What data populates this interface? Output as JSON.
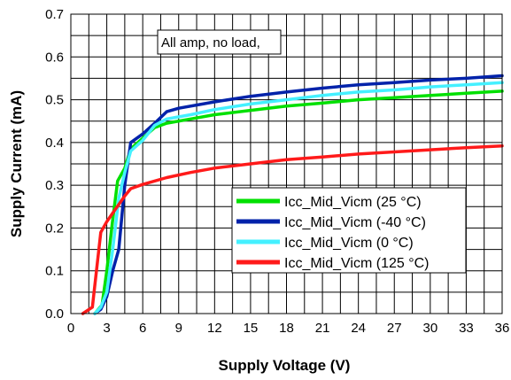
{
  "chart_data": {
    "type": "line",
    "xlabel": "Supply Voltage (V)",
    "ylabel": "Supply Current (mA)",
    "xlim": [
      0,
      36
    ],
    "ylim": [
      0.0,
      0.7
    ],
    "xticks": [
      0,
      3,
      6,
      9,
      12,
      15,
      18,
      21,
      24,
      27,
      30,
      33,
      36
    ],
    "xtick_labels": [
      "0",
      "3",
      "6",
      "9",
      "12",
      "15",
      "18",
      "21",
      "24",
      "27",
      "30",
      "33",
      "36"
    ],
    "yticks": [
      0.0,
      0.1,
      0.2,
      0.3,
      0.4,
      0.5,
      0.6,
      0.7
    ],
    "ytick_labels": [
      "0.0",
      "0.1",
      "0.2",
      "0.3",
      "0.4",
      "0.5",
      "0.6",
      "0.7"
    ],
    "grid": true,
    "legend_position": "lower-right",
    "annotation": "All amp, no load,",
    "series": [
      {
        "name": "Icc_Mid_Vicm (25 °C)",
        "color": "#00e000",
        "points": [
          [
            2.0,
            0.0
          ],
          [
            2.6,
            0.02
          ],
          [
            3.0,
            0.1
          ],
          [
            3.5,
            0.22
          ],
          [
            3.9,
            0.31
          ],
          [
            4.5,
            0.34
          ],
          [
            5.0,
            0.385
          ],
          [
            6.0,
            0.41
          ],
          [
            7.0,
            0.435
          ],
          [
            8.0,
            0.445
          ],
          [
            10,
            0.455
          ],
          [
            12,
            0.465
          ],
          [
            15,
            0.475
          ],
          [
            18,
            0.485
          ],
          [
            21,
            0.492
          ],
          [
            24,
            0.5
          ],
          [
            27,
            0.505
          ],
          [
            30,
            0.51
          ],
          [
            33,
            0.515
          ],
          [
            36,
            0.52
          ]
        ]
      },
      {
        "name": "Icc_Mid_Vicm (-40 °C)",
        "color": "#0022aa",
        "points": [
          [
            2.0,
            0.0
          ],
          [
            2.5,
            0.01
          ],
          [
            3.0,
            0.04
          ],
          [
            3.5,
            0.1
          ],
          [
            4.0,
            0.15
          ],
          [
            4.5,
            0.3
          ],
          [
            5.0,
            0.4
          ],
          [
            6.0,
            0.42
          ],
          [
            7.0,
            0.445
          ],
          [
            8.0,
            0.472
          ],
          [
            9.0,
            0.48
          ],
          [
            12,
            0.495
          ],
          [
            15,
            0.508
          ],
          [
            18,
            0.518
          ],
          [
            21,
            0.527
          ],
          [
            24,
            0.535
          ],
          [
            27,
            0.54
          ],
          [
            30,
            0.546
          ],
          [
            33,
            0.55
          ],
          [
            36,
            0.556
          ]
        ]
      },
      {
        "name": "Icc_Mid_Vicm (0 °C)",
        "color": "#44f0ff",
        "points": [
          [
            2.0,
            0.0
          ],
          [
            2.5,
            0.015
          ],
          [
            3.0,
            0.05
          ],
          [
            3.5,
            0.15
          ],
          [
            4.0,
            0.27
          ],
          [
            4.5,
            0.33
          ],
          [
            5.0,
            0.38
          ],
          [
            6.0,
            0.405
          ],
          [
            7.0,
            0.44
          ],
          [
            8.0,
            0.455
          ],
          [
            10,
            0.465
          ],
          [
            12,
            0.477
          ],
          [
            15,
            0.49
          ],
          [
            18,
            0.5
          ],
          [
            21,
            0.51
          ],
          [
            24,
            0.518
          ],
          [
            27,
            0.523
          ],
          [
            30,
            0.53
          ],
          [
            33,
            0.535
          ],
          [
            36,
            0.54
          ]
        ]
      },
      {
        "name": "Icc_Mid_Vicm (125 °C)",
        "color": "#ff1a1a",
        "points": [
          [
            1.0,
            0.0
          ],
          [
            1.8,
            0.015
          ],
          [
            2.5,
            0.19
          ],
          [
            3.0,
            0.215
          ],
          [
            3.5,
            0.235
          ],
          [
            4.0,
            0.255
          ],
          [
            4.5,
            0.275
          ],
          [
            5.0,
            0.292
          ],
          [
            6.0,
            0.302
          ],
          [
            8.0,
            0.318
          ],
          [
            10,
            0.33
          ],
          [
            12,
            0.34
          ],
          [
            15,
            0.35
          ],
          [
            18,
            0.36
          ],
          [
            21,
            0.366
          ],
          [
            24,
            0.373
          ],
          [
            27,
            0.378
          ],
          [
            30,
            0.383
          ],
          [
            33,
            0.388
          ],
          [
            36,
            0.392
          ]
        ]
      }
    ]
  }
}
